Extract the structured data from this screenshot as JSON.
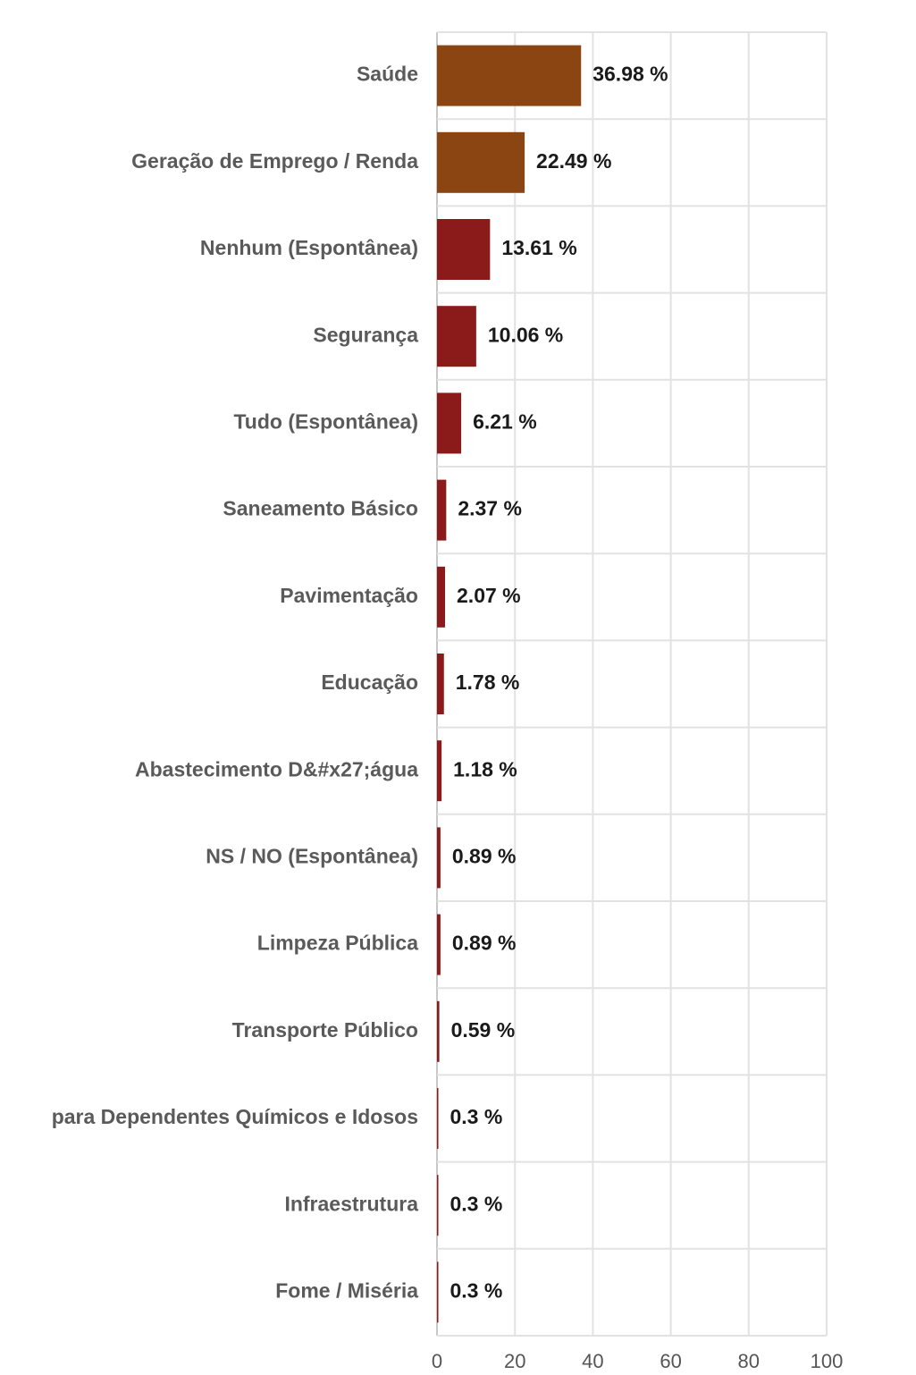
{
  "chart_data": {
    "type": "bar",
    "orientation": "horizontal",
    "categories": [
      "Saúde",
      "Geração de Emprego / Renda",
      "Nenhum (Espontânea)",
      "Segurança",
      "Tudo (Espontânea)",
      "Saneamento Básico",
      "Pavimentação",
      "Educação",
      "Abastecimento D&#x27;água",
      "NS / NO (Espontânea)",
      "Limpeza Pública",
      "Transporte Público",
      "para Dependentes Químicos e Idosos",
      "Infraestrutura",
      "Fome / Miséria"
    ],
    "values": [
      36.98,
      22.49,
      13.61,
      10.06,
      6.21,
      2.37,
      2.07,
      1.78,
      1.18,
      0.89,
      0.89,
      0.59,
      0.3,
      0.3,
      0.3
    ],
    "value_labels": [
      "36.98 %",
      "22.49 %",
      "13.61 %",
      "10.06 %",
      "6.21 %",
      "2.37 %",
      "2.07 %",
      "1.78 %",
      "1.18 %",
      "0.89 %",
      "0.89 %",
      "0.59 %",
      "0.3 %",
      "0.3 %",
      "0.3 %"
    ],
    "bar_colors": [
      "#8B4513",
      "#8B4513",
      "#8B1A1A",
      "#8B1A1A",
      "#8B1A1A",
      "#8B1A1A",
      "#8B1A1A",
      "#8B1A1A",
      "#8B1A1A",
      "#8B1A1A",
      "#8B1A1A",
      "#8B1A1A",
      "#8B1A1A",
      "#8B1A1A",
      "#8B1A1A"
    ],
    "xlim": [
      0,
      100
    ],
    "x_ticks": [
      0,
      20,
      40,
      60,
      80,
      100
    ],
    "x_tick_labels": [
      "0",
      "20",
      "40",
      "60",
      "80",
      "100"
    ],
    "title": "",
    "xlabel": "",
    "ylabel": "",
    "grid": true,
    "legend": "none"
  }
}
